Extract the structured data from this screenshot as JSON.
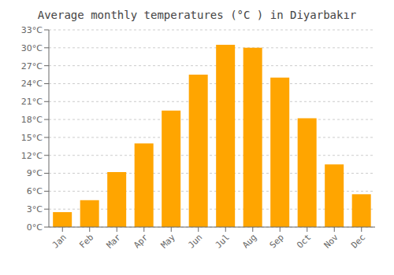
{
  "chart_data": {
    "type": "bar",
    "title": "Average monthly temperatures (°C ) in Diyarbakır",
    "categories": [
      "Jan",
      "Feb",
      "Mar",
      "Apr",
      "May",
      "Jun",
      "Jul",
      "Aug",
      "Sep",
      "Oct",
      "Nov",
      "Dec"
    ],
    "values": [
      2.5,
      4.5,
      9.2,
      14.0,
      19.5,
      25.5,
      30.5,
      30.0,
      25.0,
      18.2,
      10.5,
      5.5
    ],
    "color": "#FFA500",
    "ylim": [
      0,
      33
    ],
    "yticks": [
      {
        "value": 0,
        "label": "0°C"
      },
      {
        "value": 3,
        "label": "3°C"
      },
      {
        "value": 6,
        "label": "6°C"
      },
      {
        "value": 9,
        "label": "9°C"
      },
      {
        "value": 12,
        "label": "12°C"
      },
      {
        "value": 15,
        "label": "15°C"
      },
      {
        "value": 18,
        "label": "18°C"
      },
      {
        "value": 21,
        "label": "21°C"
      },
      {
        "value": 24,
        "label": "24°C"
      },
      {
        "value": 27,
        "label": "27°C"
      },
      {
        "value": 30,
        "label": "30°C"
      },
      {
        "value": 33,
        "label": "33°C"
      }
    ],
    "grid": true
  }
}
